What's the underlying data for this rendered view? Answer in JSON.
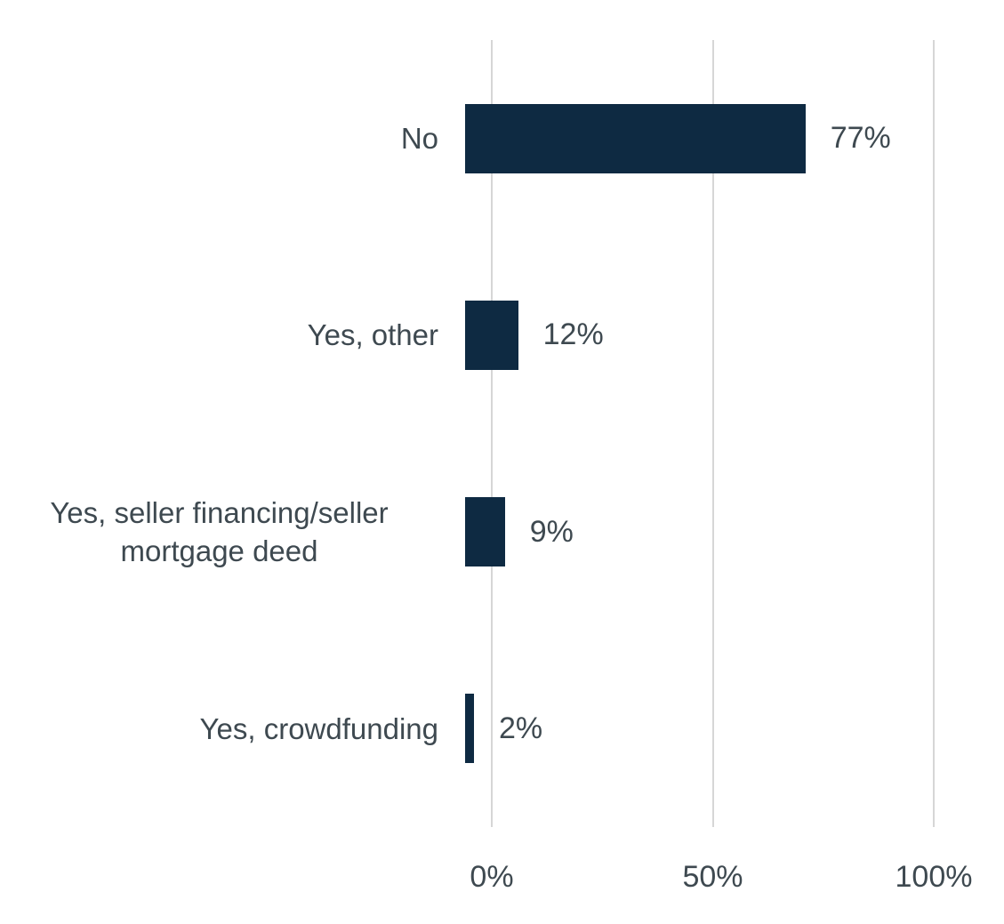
{
  "colors": {
    "bar": "#0e2a42",
    "text": "#3e4950",
    "gridline": "#d6d6d6",
    "background": "#ffffff"
  },
  "chart_data": {
    "type": "bar",
    "orientation": "horizontal",
    "title": "",
    "xlabel": "",
    "ylabel": "",
    "categories": [
      "No",
      "Yes, other",
      "Yes, seller financing/seller mortgage deed",
      "Yes, crowdfunding"
    ],
    "values": [
      77,
      12,
      9,
      2
    ],
    "value_labels": [
      "77%",
      "12%",
      "9%",
      "2%"
    ],
    "xlim": [
      0,
      100
    ],
    "x_ticks": [
      {
        "value": 0,
        "label": "0%"
      },
      {
        "value": 50,
        "label": "50%"
      },
      {
        "value": 100,
        "label": "100%"
      }
    ],
    "grid": true,
    "legend": false
  }
}
